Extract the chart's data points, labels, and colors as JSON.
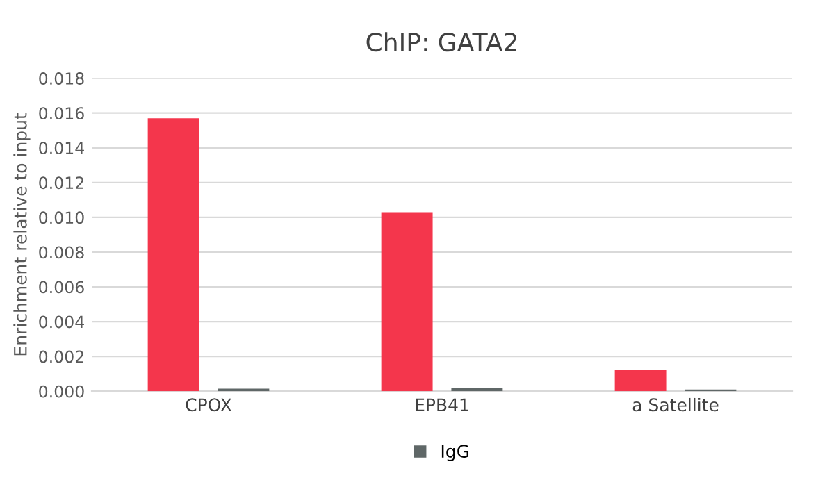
{
  "chart_data": {
    "type": "bar",
    "title": "ChIP: GATA2",
    "ylabel": "Enrichment relative to input",
    "categories": [
      "CPOX",
      "EPB41",
      "a Satellite"
    ],
    "series": [
      {
        "color": "#f4364c",
        "values": [
          0.0157,
          0.0103,
          0.00125
        ]
      },
      {
        "name": "IgG",
        "color": "#5f6767",
        "values": [
          0.00015,
          0.0002,
          0.0001
        ]
      }
    ],
    "ylim": [
      0,
      0.018
    ],
    "yticks": [
      {
        "value": 0,
        "label": "0.000"
      },
      {
        "value": 0.002,
        "label": "0.002"
      },
      {
        "value": 0.004,
        "label": "0.004"
      },
      {
        "value": 0.006,
        "label": "0.006"
      },
      {
        "value": 0.008,
        "label": "0.008"
      },
      {
        "value": 0.01,
        "label": "0.010"
      },
      {
        "value": 0.012,
        "label": "0.012"
      },
      {
        "value": 0.014,
        "label": "0.014"
      },
      {
        "value": 0.016,
        "label": "0.016"
      },
      {
        "value": 0.018,
        "label": "0.018"
      }
    ],
    "grid": "y",
    "legend": "bottom"
  }
}
